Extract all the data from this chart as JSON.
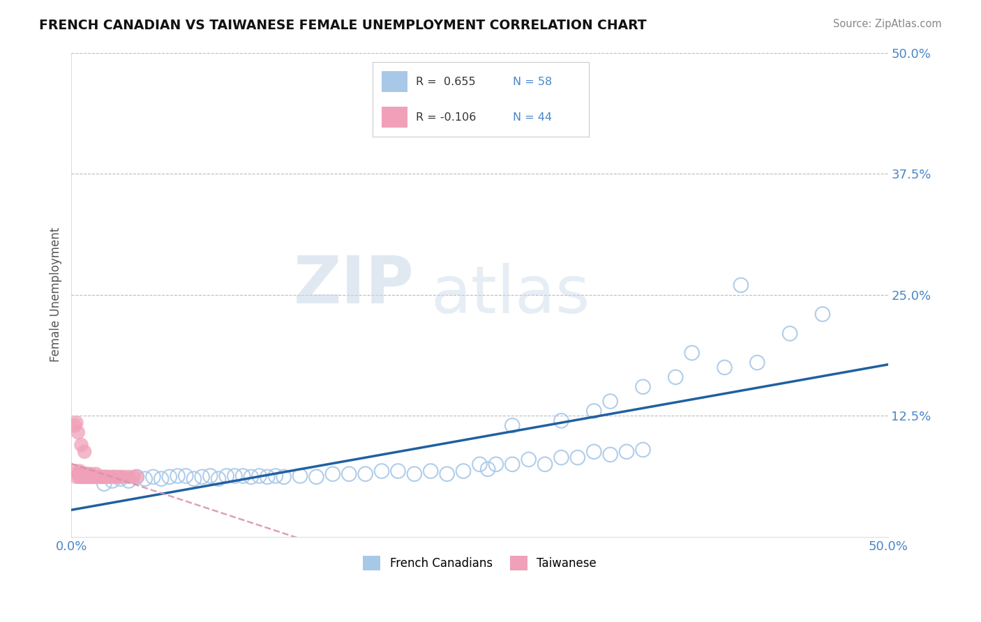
{
  "title": "FRENCH CANADIAN VS TAIWANESE FEMALE UNEMPLOYMENT CORRELATION CHART",
  "source": "Source: ZipAtlas.com",
  "ylabel": "Female Unemployment",
  "xmin": 0.0,
  "xmax": 0.5,
  "ymin": 0.0,
  "ymax": 0.5,
  "R_blue": 0.655,
  "N_blue": 58,
  "R_pink": -0.106,
  "N_pink": 44,
  "blue_color": "#a8c8e8",
  "pink_color": "#f0a0b8",
  "blue_line_color": "#2060a0",
  "pink_line_color": "#d890a8",
  "background_color": "#ffffff",
  "watermark_zip": "ZIP",
  "watermark_atlas": "atlas",
  "blue_x": [
    0.02,
    0.025,
    0.03,
    0.035,
    0.04,
    0.045,
    0.05,
    0.055,
    0.06,
    0.065,
    0.07,
    0.075,
    0.08,
    0.085,
    0.09,
    0.095,
    0.1,
    0.105,
    0.11,
    0.115,
    0.12,
    0.125,
    0.13,
    0.14,
    0.15,
    0.16,
    0.17,
    0.18,
    0.19,
    0.2,
    0.21,
    0.22,
    0.23,
    0.24,
    0.25,
    0.255,
    0.26,
    0.27,
    0.28,
    0.29,
    0.3,
    0.31,
    0.32,
    0.33,
    0.34,
    0.35,
    0.27,
    0.3,
    0.32,
    0.33,
    0.35,
    0.37,
    0.4,
    0.42,
    0.44,
    0.46,
    0.38,
    0.41
  ],
  "blue_y": [
    0.055,
    0.058,
    0.06,
    0.058,
    0.062,
    0.06,
    0.062,
    0.06,
    0.062,
    0.063,
    0.063,
    0.06,
    0.062,
    0.063,
    0.06,
    0.063,
    0.063,
    0.063,
    0.062,
    0.063,
    0.062,
    0.063,
    0.062,
    0.063,
    0.062,
    0.065,
    0.065,
    0.065,
    0.068,
    0.068,
    0.065,
    0.068,
    0.065,
    0.068,
    0.075,
    0.07,
    0.075,
    0.075,
    0.08,
    0.075,
    0.082,
    0.082,
    0.088,
    0.085,
    0.088,
    0.09,
    0.115,
    0.12,
    0.13,
    0.14,
    0.155,
    0.165,
    0.175,
    0.18,
    0.21,
    0.23,
    0.19,
    0.26
  ],
  "pink_x": [
    0.002,
    0.003,
    0.004,
    0.005,
    0.005,
    0.005,
    0.006,
    0.006,
    0.007,
    0.007,
    0.008,
    0.008,
    0.009,
    0.009,
    0.01,
    0.01,
    0.011,
    0.012,
    0.012,
    0.013,
    0.014,
    0.015,
    0.015,
    0.016,
    0.017,
    0.018,
    0.019,
    0.02,
    0.021,
    0.022,
    0.023,
    0.025,
    0.026,
    0.028,
    0.03,
    0.032,
    0.035,
    0.038,
    0.04,
    0.002,
    0.003,
    0.004,
    0.006,
    0.008
  ],
  "pink_y": [
    0.068,
    0.062,
    0.065,
    0.062,
    0.065,
    0.068,
    0.062,
    0.065,
    0.062,
    0.065,
    0.062,
    0.065,
    0.062,
    0.065,
    0.062,
    0.065,
    0.062,
    0.062,
    0.065,
    0.062,
    0.062,
    0.062,
    0.065,
    0.062,
    0.062,
    0.062,
    0.062,
    0.062,
    0.062,
    0.062,
    0.062,
    0.062,
    0.062,
    0.062,
    0.062,
    0.062,
    0.062,
    0.062,
    0.062,
    0.115,
    0.118,
    0.108,
    0.095,
    0.088
  ]
}
